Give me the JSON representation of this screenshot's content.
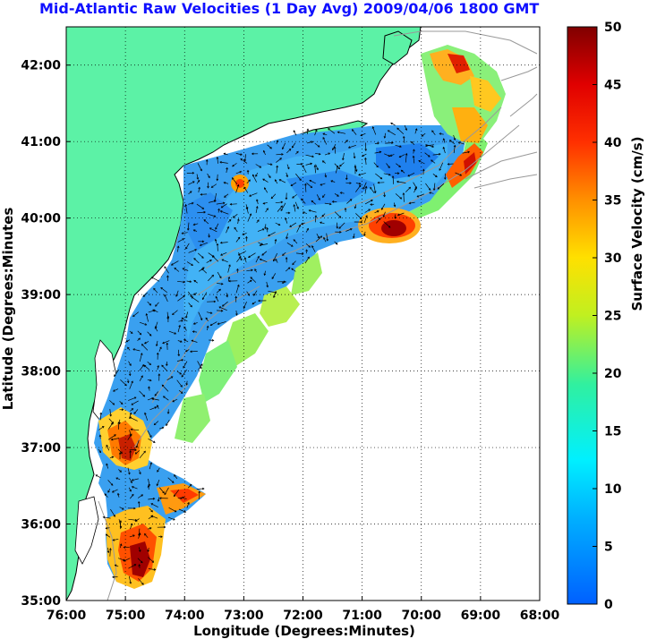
{
  "title": "Mid-Atlantic Raw Velocities (1 Day Avg) 2009/04/06 1800 GMT",
  "axes": {
    "xlabel": "Longitude (Degrees:Minutes)",
    "ylabel": "Latitude (Degrees:Minutes",
    "x_ticks": [
      "76:00",
      "75:00",
      "74:00",
      "73:00",
      "72:00",
      "71:00",
      "70:00",
      "69:00",
      "68:00"
    ],
    "y_ticks": [
      "42:00",
      "41:00",
      "40:00",
      "39:00",
      "38:00",
      "37:00",
      "36:00",
      "35:00"
    ]
  },
  "colorbar": {
    "label": "Surface Velocity (cm/s)",
    "ticks": [
      "50",
      "45",
      "40",
      "35",
      "30",
      "25",
      "20",
      "15",
      "10",
      "5",
      "0"
    ],
    "min": 0,
    "max": 50
  },
  "map": {
    "lon_range": [
      -76,
      -68
    ],
    "lat_range": [
      35,
      42.5
    ],
    "land_color": "#5cf2a6",
    "ocean_color": "#ffffff",
    "bathymetry_color": "#999999"
  }
}
